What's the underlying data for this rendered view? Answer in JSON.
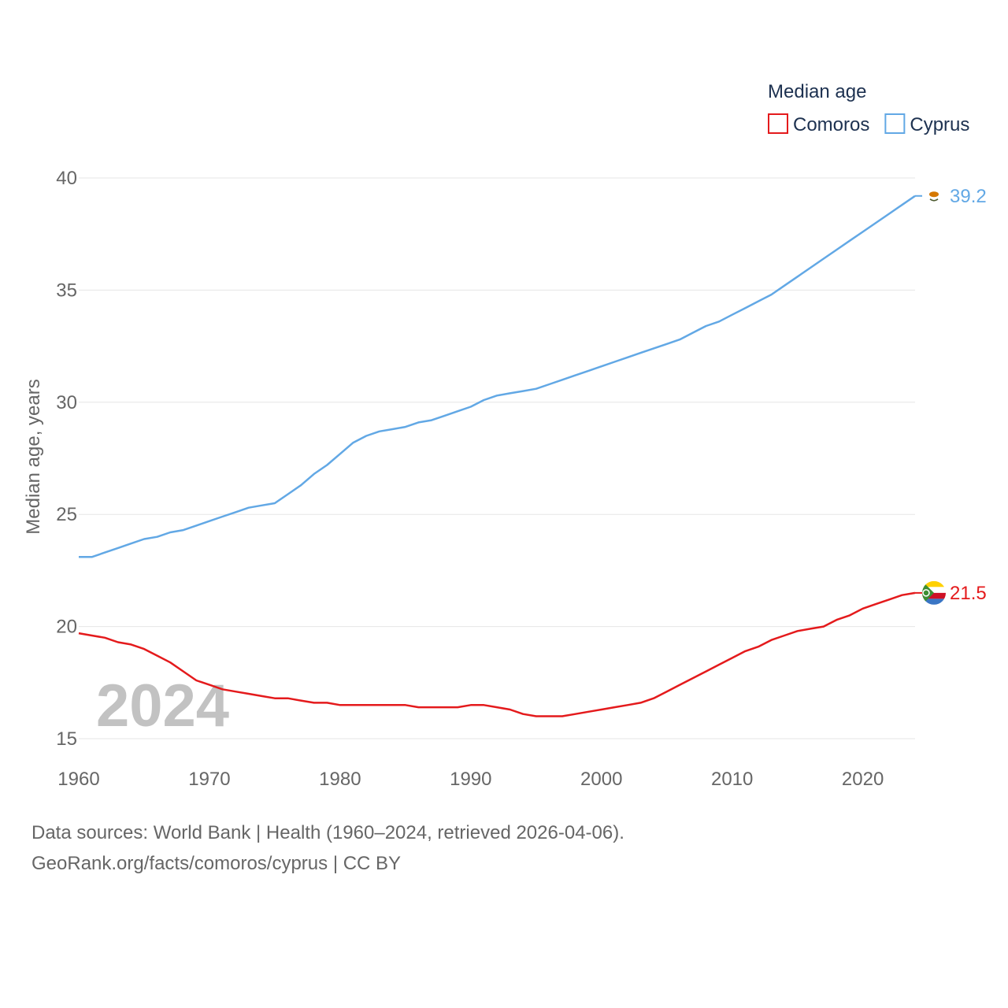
{
  "chart_data": {
    "type": "line",
    "legend_title": "Median age",
    "ylabel": "Median age, years",
    "xlabel": "",
    "year_label": "2024",
    "xlim": [
      1960,
      2024
    ],
    "ylim": [
      15,
      40
    ],
    "x_ticks": [
      1960,
      1970,
      1980,
      1990,
      2000,
      2010,
      2020
    ],
    "y_ticks": [
      15,
      20,
      25,
      30,
      35,
      40
    ],
    "x": [
      1960,
      1961,
      1962,
      1963,
      1964,
      1965,
      1966,
      1967,
      1968,
      1969,
      1970,
      1971,
      1972,
      1973,
      1974,
      1975,
      1976,
      1977,
      1978,
      1979,
      1980,
      1981,
      1982,
      1983,
      1984,
      1985,
      1986,
      1987,
      1988,
      1989,
      1990,
      1991,
      1992,
      1993,
      1994,
      1995,
      1996,
      1997,
      1998,
      1999,
      2000,
      2001,
      2002,
      2003,
      2004,
      2005,
      2006,
      2007,
      2008,
      2009,
      2010,
      2011,
      2012,
      2013,
      2014,
      2015,
      2016,
      2017,
      2018,
      2019,
      2020,
      2021,
      2022,
      2023,
      2024
    ],
    "series": [
      {
        "name": "Comoros",
        "color": "#e41a1c",
        "end_label": "21.5",
        "flag_icon": "comoros-flag-icon",
        "values": [
          19.7,
          19.6,
          19.5,
          19.3,
          19.2,
          19.0,
          18.7,
          18.4,
          18.0,
          17.6,
          17.4,
          17.2,
          17.1,
          17.0,
          16.9,
          16.8,
          16.8,
          16.7,
          16.6,
          16.6,
          16.5,
          16.5,
          16.5,
          16.5,
          16.5,
          16.5,
          16.4,
          16.4,
          16.4,
          16.4,
          16.5,
          16.5,
          16.4,
          16.3,
          16.1,
          16.0,
          16.0,
          16.0,
          16.1,
          16.2,
          16.3,
          16.4,
          16.5,
          16.6,
          16.8,
          17.1,
          17.4,
          17.7,
          18.0,
          18.3,
          18.6,
          18.9,
          19.1,
          19.4,
          19.6,
          19.8,
          19.9,
          20.0,
          20.3,
          20.5,
          20.8,
          21.0,
          21.2,
          21.4,
          21.5
        ]
      },
      {
        "name": "Cyprus",
        "color": "#62a8e5",
        "end_label": "39.2",
        "flag_icon": "cyprus-flag-icon",
        "values": [
          23.1,
          23.1,
          23.3,
          23.5,
          23.7,
          23.9,
          24.0,
          24.2,
          24.3,
          24.5,
          24.7,
          24.9,
          25.1,
          25.3,
          25.4,
          25.5,
          25.9,
          26.3,
          26.8,
          27.2,
          27.7,
          28.2,
          28.5,
          28.7,
          28.8,
          28.9,
          29.1,
          29.2,
          29.4,
          29.6,
          29.8,
          30.1,
          30.3,
          30.4,
          30.5,
          30.6,
          30.8,
          31.0,
          31.2,
          31.4,
          31.6,
          31.8,
          32.0,
          32.2,
          32.4,
          32.6,
          32.8,
          33.1,
          33.4,
          33.6,
          33.9,
          34.2,
          34.5,
          34.8,
          35.2,
          35.6,
          36.0,
          36.4,
          36.8,
          37.2,
          37.6,
          38.0,
          38.4,
          38.8,
          39.2
        ]
      }
    ]
  },
  "footer": {
    "sources": "Data sources: World Bank | Health (1960–2024, retrieved 2026-04-06).",
    "url": "GeoRank.org/facts/comoros/cyprus | CC BY"
  },
  "colors": {
    "axis_text": "#666666",
    "legend_text": "#1d3150",
    "grid": "#e6e6e6",
    "year_watermark": "#c2c2c2"
  }
}
